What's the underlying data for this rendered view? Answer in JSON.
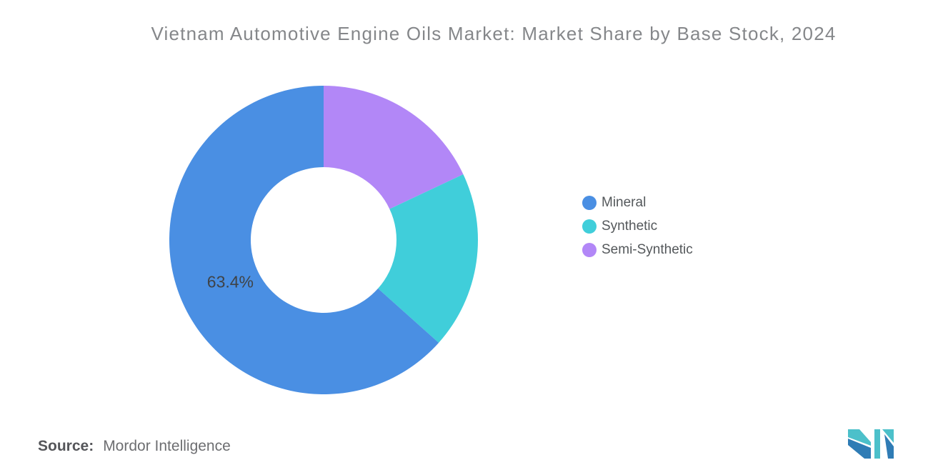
{
  "title": "Vietnam Automotive Engine Oils Market: Market Share by Base Stock, 2024",
  "source": {
    "label": "Source:",
    "value": "Mordor Intelligence"
  },
  "chart_data": {
    "type": "pie",
    "subtype": "donut",
    "title": "Vietnam Automotive Engine Oils Market: Market Share by Base Stock, 2024",
    "segments": [
      {
        "name": "Mineral",
        "value": 63.4,
        "color": "#4a8fe3",
        "data_label": "63.4%"
      },
      {
        "name": "Synthetic",
        "value": 18.6,
        "color": "#40ceda",
        "data_label": ""
      },
      {
        "name": "Semi-Synthetic",
        "value": 18.0,
        "color": "#b287f7",
        "data_label": ""
      }
    ],
    "start_angle_deg": 0,
    "direction": "clockwise-from-top, segments drawn in reverse legend order",
    "inner_radius_ratio": 0.47,
    "legend_position": "right",
    "label_color": "#3f4347",
    "label_font_size": 23
  },
  "logo": {
    "name": "Mordor Intelligence logo mark",
    "teal": "#4cc0ca",
    "blue": "#2f7cb5"
  }
}
